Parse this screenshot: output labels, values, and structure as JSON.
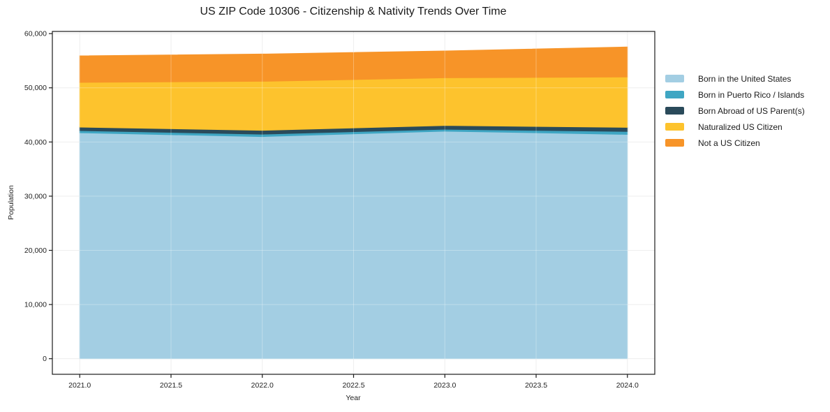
{
  "chart_data": {
    "type": "area",
    "stacked": true,
    "title": "US ZIP Code 10306 - Citizenship & Nativity Trends Over Time",
    "xlabel": "Year",
    "ylabel": "Population",
    "x": [
      2021,
      2022,
      2023,
      2024
    ],
    "series": [
      {
        "name": "Born in the United States",
        "color": "#a3cee3",
        "values": [
          41700,
          41000,
          42000,
          41400
        ]
      },
      {
        "name": "Born in Puerto Rico / Islands",
        "color": "#3fa6c3",
        "values": [
          400,
          450,
          350,
          550
        ]
      },
      {
        "name": "Born Abroad of US Parent(s)",
        "color": "#2a4a5a",
        "values": [
          650,
          700,
          700,
          750
        ]
      },
      {
        "name": "Naturalized US Citizen",
        "color": "#fdc32d",
        "values": [
          8250,
          9050,
          8800,
          9300
        ]
      },
      {
        "name": "Not a US Citizen",
        "color": "#f79428",
        "values": [
          4900,
          5030,
          4950,
          5530
        ]
      }
    ],
    "x_ticks": {
      "values": [
        2021,
        2021.5,
        2022,
        2022.5,
        2023,
        2023.5,
        2024
      ],
      "labels": [
        "2021.0",
        "2021.5",
        "2022.0",
        "2022.5",
        "2023.0",
        "2023.5",
        "2024.0"
      ]
    },
    "y_ticks": {
      "values": [
        0,
        10000,
        20000,
        30000,
        40000,
        50000,
        60000
      ],
      "labels": [
        "0",
        "10,000",
        "20,000",
        "30,000",
        "40,000",
        "50,000",
        "60,000"
      ]
    },
    "xlim": [
      2020.85,
      2024.15
    ],
    "ylim": [
      -2877,
      60407
    ],
    "grid": true,
    "legend_position": "right",
    "colors": {
      "grid": "#e8e8e8",
      "spine": "#1a1a1a",
      "tick_text": "#222222"
    }
  }
}
